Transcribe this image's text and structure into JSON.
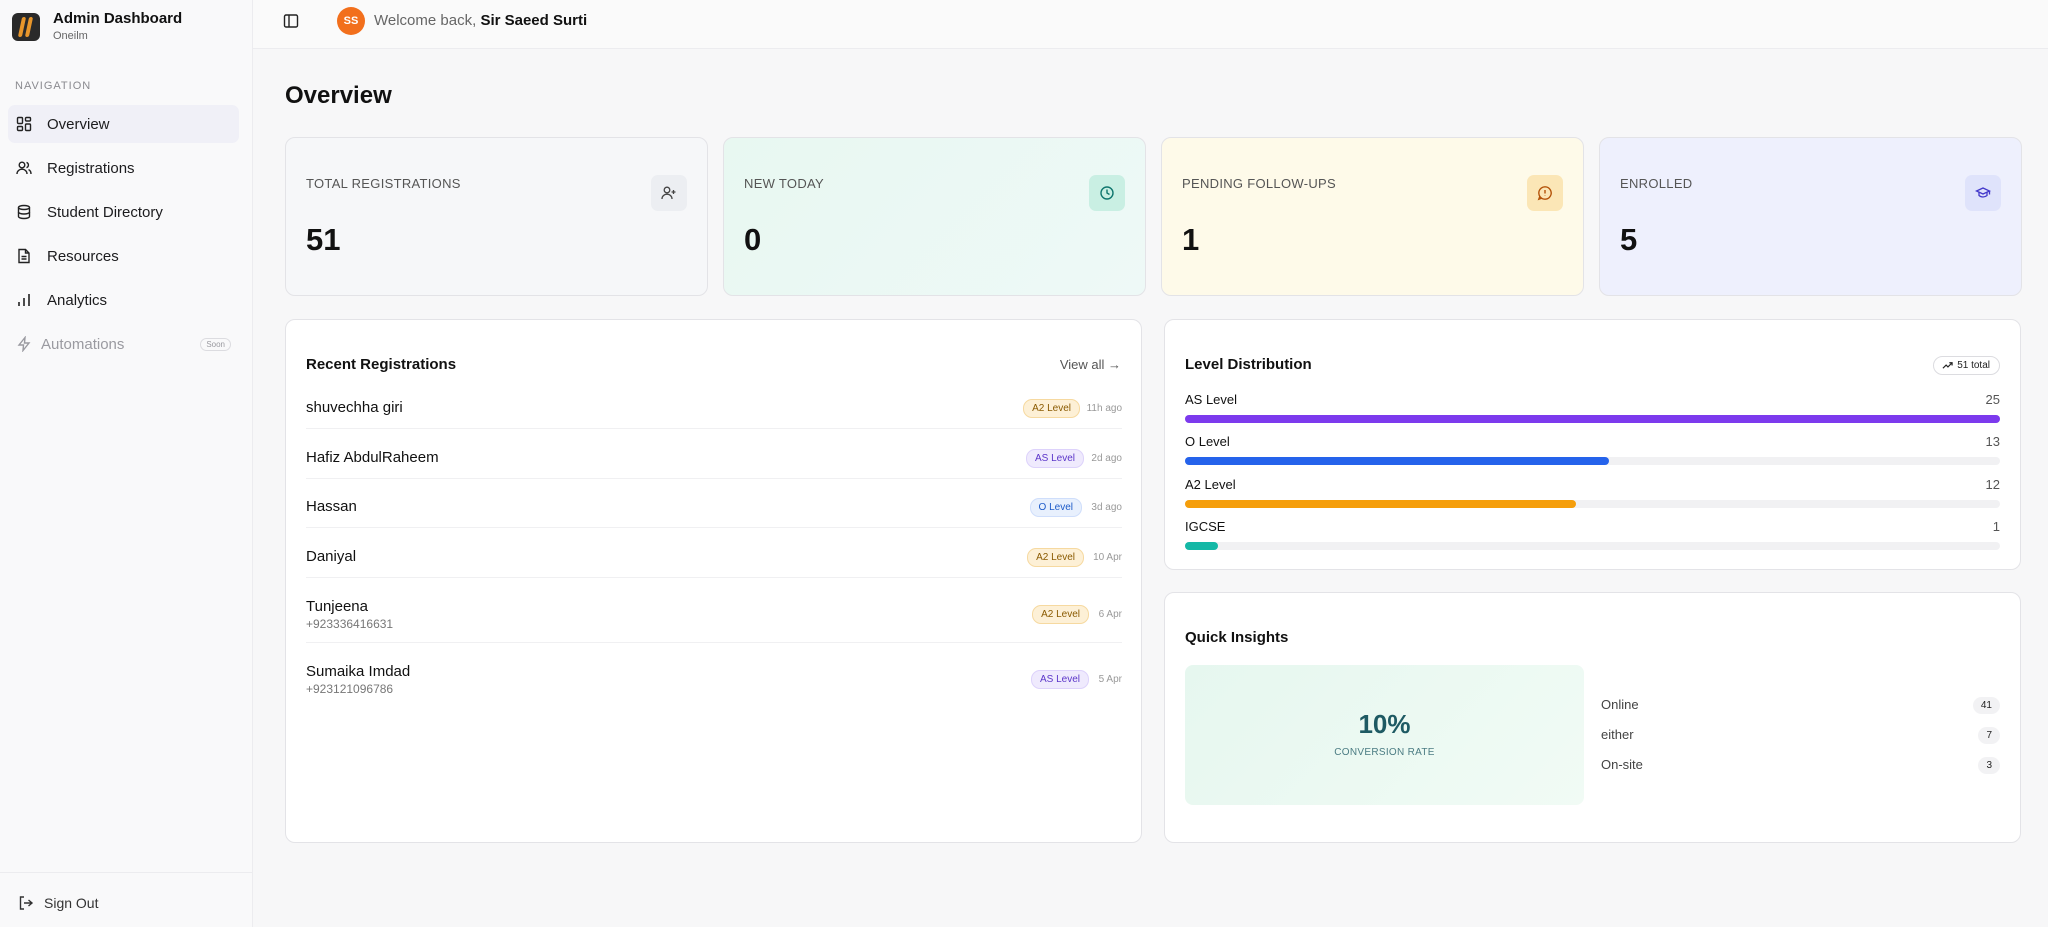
{
  "app": {
    "title": "Admin Dashboard",
    "subtitle": "Oneilm"
  },
  "nav": {
    "heading": "NAVIGATION",
    "items": [
      {
        "label": "Overview",
        "icon": "grid-icon"
      },
      {
        "label": "Registrations",
        "icon": "users-icon"
      },
      {
        "label": "Student Directory",
        "icon": "database-icon"
      },
      {
        "label": "Resources",
        "icon": "file-icon"
      },
      {
        "label": "Analytics",
        "icon": "bar-chart-icon"
      },
      {
        "label": "Automations",
        "icon": "bolt-icon",
        "badge": "Soon"
      }
    ],
    "signout": "Sign Out"
  },
  "header": {
    "avatar_initials": "SS",
    "welcome_prefix": "Welcome back,",
    "user_name": "Sir Saeed Surti"
  },
  "page_title": "Overview",
  "stats": [
    {
      "label": "TOTAL REGISTRATIONS",
      "value": "51",
      "icon": "user-plus-icon"
    },
    {
      "label": "NEW TODAY",
      "value": "0",
      "icon": "clock-icon"
    },
    {
      "label": "PENDING FOLLOW-UPS",
      "value": "1",
      "icon": "message-alert-icon"
    },
    {
      "label": "ENROLLED",
      "value": "5",
      "icon": "graduation-cap-icon"
    }
  ],
  "recent": {
    "title": "Recent Registrations",
    "view_all": "View all",
    "rows": [
      {
        "name": "shuvechha giri",
        "phone": "",
        "level": "A2 Level",
        "time": "11h ago"
      },
      {
        "name": "Hafiz AbdulRaheem",
        "phone": "",
        "level": "AS Level",
        "time": "2d ago"
      },
      {
        "name": "Hassan",
        "phone": "",
        "level": "O Level",
        "time": "3d ago"
      },
      {
        "name": "Daniyal",
        "phone": "",
        "level": "A2 Level",
        "time": "10 Apr"
      },
      {
        "name": "Tunjeena",
        "phone": "+923336416631",
        "level": "A2 Level",
        "time": "6 Apr"
      },
      {
        "name": "Sumaika Imdad",
        "phone": "+923121096786",
        "level": "AS Level",
        "time": "5 Apr"
      }
    ]
  },
  "distribution": {
    "title": "Level Distribution",
    "total_label": "51 total",
    "max": 25,
    "levels": [
      {
        "label": "AS Level",
        "count": 25,
        "color": "#7c3aed"
      },
      {
        "label": "O Level",
        "count": 13,
        "color": "#2563eb"
      },
      {
        "label": "A2 Level",
        "count": 12,
        "color": "#f59e0b"
      },
      {
        "label": "IGCSE",
        "count": 1,
        "color": "#14b8a6"
      }
    ]
  },
  "insights": {
    "title": "Quick Insights",
    "conversion_value": "10%",
    "conversion_label": "CONVERSION RATE",
    "modes": [
      {
        "label": "Online",
        "count": "41"
      },
      {
        "label": "either",
        "count": "7"
      },
      {
        "label": "On-site",
        "count": "3"
      }
    ]
  },
  "colors": {
    "accent": "#f26f1c",
    "active_nav": "#f0f0f7"
  }
}
